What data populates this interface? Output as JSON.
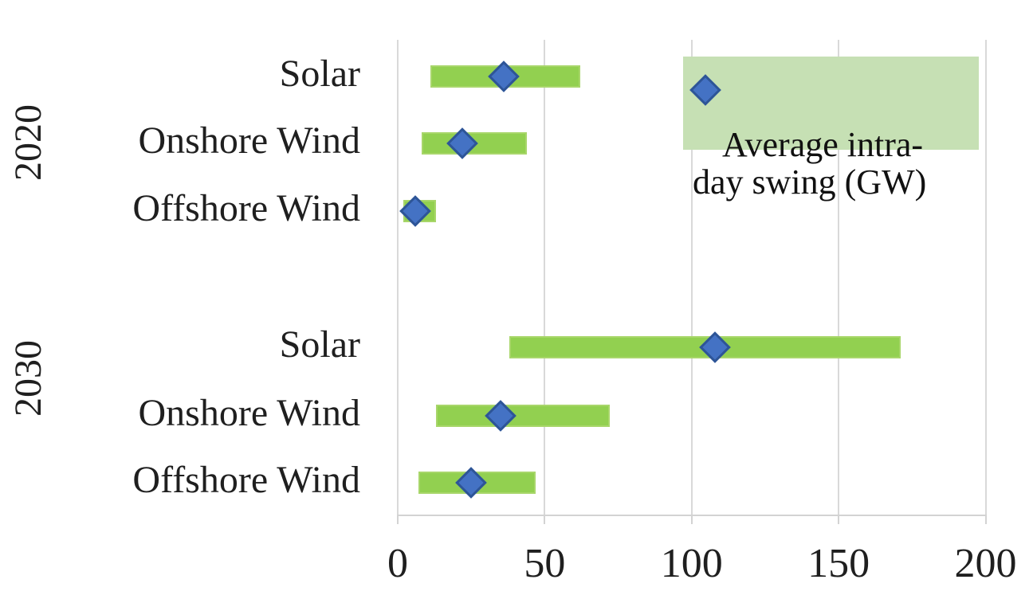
{
  "chart_data": {
    "type": "bar",
    "subtype": "horizontal-range-bars-with-average-markers",
    "title": "",
    "xlabel": "",
    "ylabel": "",
    "unit": "GW",
    "grid": true,
    "x_axis": {
      "min": 0,
      "max": 200,
      "ticks": [
        0,
        50,
        100,
        150,
        200
      ]
    },
    "groups": [
      {
        "year": "2020",
        "items": [
          {
            "label": "Solar",
            "range_low": 11,
            "range_high": 62,
            "average_intraday_swing": 36
          },
          {
            "label": "Onshore Wind",
            "range_low": 8,
            "range_high": 44,
            "average_intraday_swing": 22
          },
          {
            "label": "Offshore Wind",
            "range_low": 2,
            "range_high": 13,
            "average_intraday_swing": 6
          }
        ]
      },
      {
        "year": "2030",
        "items": [
          {
            "label": "Solar",
            "range_low": 38,
            "range_high": 171,
            "average_intraday_swing": 108
          },
          {
            "label": "Onshore Wind",
            "range_low": 13,
            "range_high": 72,
            "average_intraday_swing": 35
          },
          {
            "label": "Offshore Wind",
            "range_low": 7,
            "range_high": 47,
            "average_intraday_swing": 25
          }
        ]
      }
    ],
    "legend": {
      "label": "Average intra-day swing (GW)",
      "lines": [
        "Average intra-",
        "day swing (GW)"
      ],
      "position": "top-right",
      "marker": "blue-diamond"
    },
    "colors": {
      "bar_fill": "#92d050",
      "bar_border": "#a8d66a",
      "marker_fill": "#4472c4",
      "marker_border": "#2e5597",
      "legend_background": "#c6e0b4",
      "gridline": "#d9d9d9",
      "text": "#1f1f1f"
    }
  }
}
